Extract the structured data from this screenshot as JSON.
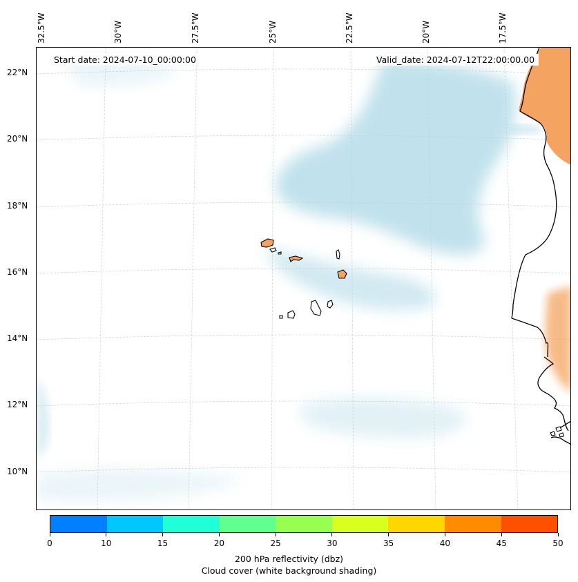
{
  "map": {
    "start_date": "Start date: 2024-07-10_00:00:00",
    "valid_date": "Valid_date: 2024-07-12T22:00:00.00",
    "lon_labels": [
      "32.5°W",
      "30°W",
      "27.5°W",
      "25°W",
      "22.5°W",
      "20°W",
      "17.5°W"
    ],
    "lat_labels": [
      "22°N",
      "20°N",
      "18°N",
      "16°N",
      "14°N",
      "12°N",
      "10°N"
    ],
    "land_color": "#f4a460",
    "cloud_color": "#add8e6",
    "coast_color": "#000000",
    "grid_color": "#c8c8c8"
  },
  "colorbar": {
    "ticks": [
      "0",
      "10",
      "15",
      "20",
      "25",
      "30",
      "35",
      "40",
      "45",
      "50"
    ],
    "colors": [
      "#0080ff",
      "#00c8ff",
      "#20ffd8",
      "#60ff90",
      "#98ff50",
      "#d8ff20",
      "#ffd700",
      "#ff8c00",
      "#ff5000"
    ],
    "label": "200 hPa reflectivity (dbz)",
    "sublabel": "Cloud cover (white background shading)"
  }
}
